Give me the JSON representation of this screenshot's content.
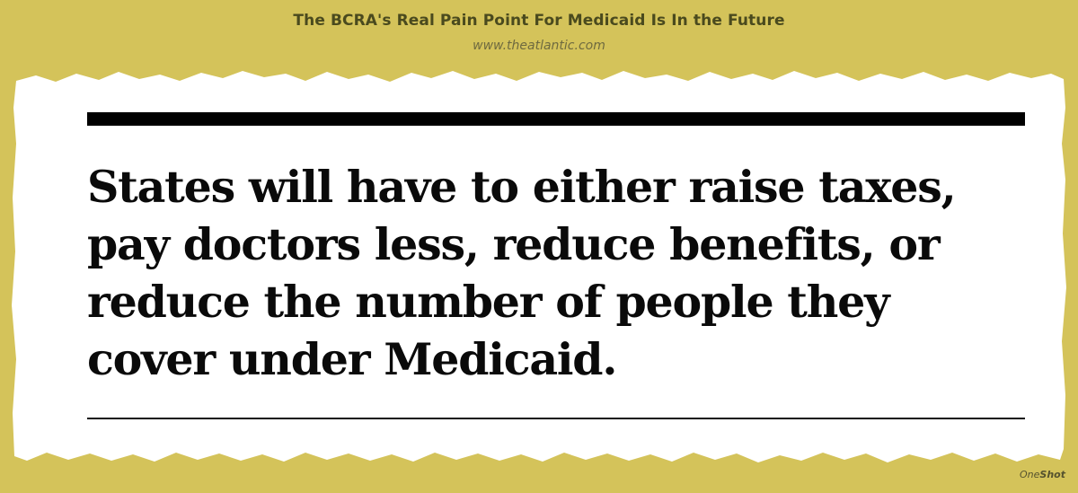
{
  "header": {
    "headline": "The BCRA's Real Pain Point For Medicaid Is In the Future",
    "source": "www.theatlantic.com"
  },
  "quote": {
    "lines": [
      "States will have to either raise taxes,",
      "pay doctors less, reduce benefits, or",
      "reduce the number of people they",
      "cover under Medicaid."
    ]
  },
  "brand": {
    "prefix": "One",
    "suffix": "Shot"
  },
  "colors": {
    "background": "#d4c35a",
    "paper": "#ffffff",
    "text": "#0a0a0a",
    "header_text": "#4a4a1e"
  }
}
